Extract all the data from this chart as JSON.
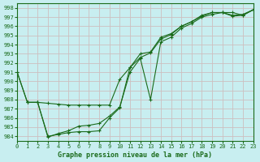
{
  "title": "Graphe pression niveau de la mer (hPa)",
  "background_color": "#c8eef0",
  "grid_color": "#cdbfbf",
  "line_color": "#1a6b1a",
  "xlim": [
    0,
    23
  ],
  "ylim": [
    983.5,
    998.5
  ],
  "xticks": [
    0,
    1,
    2,
    3,
    4,
    5,
    6,
    7,
    8,
    9,
    10,
    11,
    12,
    13,
    14,
    15,
    16,
    17,
    18,
    19,
    20,
    21,
    22,
    23
  ],
  "yticks": [
    984,
    985,
    986,
    987,
    988,
    989,
    990,
    991,
    992,
    993,
    994,
    995,
    996,
    997,
    998
  ],
  "line1_x": [
    0,
    1,
    2,
    3,
    4,
    5,
    6,
    7,
    8,
    9,
    10,
    11,
    12,
    13,
    14,
    15,
    16,
    17,
    18,
    19,
    20,
    21,
    22,
    23
  ],
  "line1_y": [
    991.0,
    987.7,
    987.7,
    987.6,
    987.5,
    987.4,
    987.4,
    987.4,
    987.4,
    987.4,
    990.2,
    991.5,
    993.0,
    993.2,
    994.8,
    995.2,
    996.0,
    996.5,
    997.2,
    997.5,
    997.5,
    997.2,
    997.3,
    997.8
  ],
  "line2_x": [
    0,
    1,
    2,
    3,
    4,
    5,
    6,
    7,
    8,
    9,
    10,
    11,
    12,
    13,
    14,
    15,
    16,
    17,
    18,
    19,
    20,
    21,
    22,
    23
  ],
  "line2_y": [
    991.0,
    987.7,
    987.7,
    984.0,
    984.2,
    984.4,
    984.5,
    984.5,
    984.6,
    986.0,
    987.1,
    991.5,
    992.6,
    993.1,
    994.6,
    995.1,
    996.0,
    996.5,
    997.1,
    997.5,
    997.5,
    997.1,
    997.2,
    997.8
  ],
  "line3_x": [
    1,
    2,
    3,
    4,
    5,
    6,
    7,
    8,
    9,
    10,
    11,
    12,
    13,
    14,
    15,
    16,
    17,
    18,
    19,
    20,
    21,
    22,
    23
  ],
  "line3_y": [
    987.7,
    987.7,
    983.9,
    984.3,
    984.6,
    985.1,
    985.2,
    985.4,
    986.2,
    987.2,
    991.0,
    992.5,
    988.0,
    994.3,
    994.8,
    995.8,
    996.3,
    997.0,
    997.3,
    997.5,
    997.5,
    997.2,
    997.8
  ]
}
